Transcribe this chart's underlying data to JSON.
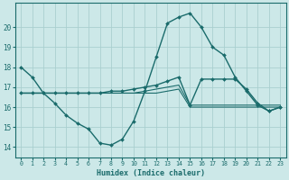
{
  "background_color": "#cce8e8",
  "grid_color": "#aacfcf",
  "line_color": "#1a6b6b",
  "x_label": "Humidex (Indice chaleur)",
  "ylim": [
    13.5,
    21.2
  ],
  "xlim": [
    -0.5,
    23.5
  ],
  "yticks": [
    14,
    15,
    16,
    17,
    18,
    19,
    20
  ],
  "xticks": [
    0,
    1,
    2,
    3,
    4,
    5,
    6,
    7,
    8,
    9,
    10,
    11,
    12,
    13,
    14,
    15,
    16,
    17,
    18,
    19,
    20,
    21,
    22,
    23
  ],
  "series": [
    {
      "y": [
        18.0,
        17.5,
        16.7,
        16.2,
        15.6,
        15.2,
        14.9,
        14.2,
        14.1,
        14.4,
        15.3,
        16.8,
        18.5,
        20.2,
        20.5,
        20.7,
        20.0,
        19.0,
        18.6,
        17.5,
        16.8,
        16.1,
        15.8,
        16.0
      ],
      "marker": true,
      "lw": 1.0
    },
    {
      "y": [
        16.7,
        16.7,
        16.7,
        16.7,
        16.7,
        16.7,
        16.7,
        16.7,
        16.7,
        16.7,
        16.7,
        16.7,
        16.7,
        16.8,
        16.9,
        16.0,
        16.0,
        16.0,
        16.0,
        16.0,
        16.0,
        16.0,
        16.0,
        16.0
      ],
      "marker": false,
      "lw": 0.8
    },
    {
      "y": [
        16.7,
        16.7,
        16.7,
        16.7,
        16.7,
        16.7,
        16.7,
        16.7,
        16.7,
        16.7,
        16.7,
        16.8,
        16.9,
        17.0,
        17.1,
        16.1,
        16.1,
        16.1,
        16.1,
        16.1,
        16.1,
        16.1,
        16.1,
        16.1
      ],
      "marker": false,
      "lw": 0.8
    },
    {
      "y": [
        16.7,
        16.7,
        16.7,
        16.7,
        16.7,
        16.7,
        16.7,
        16.7,
        16.8,
        16.8,
        16.9,
        17.0,
        17.1,
        17.3,
        17.5,
        16.1,
        17.4,
        17.4,
        17.4,
        17.4,
        16.9,
        16.2,
        15.8,
        16.0
      ],
      "marker": true,
      "lw": 1.0
    }
  ]
}
